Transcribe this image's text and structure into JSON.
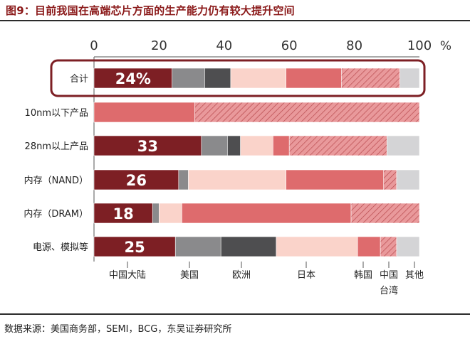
{
  "title": "图9：目前我国在高端芯片方面的生产能力仍有较大提升空间",
  "source": "数据来源：美国商务部，SEMI，BCG，东吴证券研究所",
  "chart_data": {
    "type": "bar",
    "orientation": "horizontal",
    "stacked": true,
    "xlim": [
      0,
      100
    ],
    "x_ticks": [
      "0",
      "20",
      "40",
      "60",
      "80",
      "100"
    ],
    "x_unit_label": "%",
    "categories": [
      "合计",
      "10nm以下产品",
      "28nm以上产品",
      "内存（NAND）",
      "内存（DRAM）",
      "电源、模拟等"
    ],
    "highlight_category": "合计",
    "series": [
      {
        "name": "中国大陆",
        "color": "#7d1f24",
        "pattern": "solid",
        "values": [
          24,
          0,
          33,
          26,
          18,
          25
        ]
      },
      {
        "name": "美国",
        "color": "#8a8a8c",
        "pattern": "solid",
        "values": [
          10,
          0,
          8,
          3,
          2,
          14
        ]
      },
      {
        "name": "欧洲",
        "color": "#4e4e50",
        "pattern": "solid",
        "values": [
          8,
          0,
          4,
          0,
          0,
          17
        ]
      },
      {
        "name": "日本",
        "color": "#fad3ca",
        "pattern": "solid",
        "values": [
          17,
          0,
          10,
          30,
          7,
          25
        ]
      },
      {
        "name": "韩国",
        "color": "#de6b6d",
        "pattern": "solid",
        "values": [
          17,
          31,
          5,
          30,
          52,
          7
        ]
      },
      {
        "name": "中国台湾",
        "color": "#e9999b",
        "pattern": "hatched",
        "values": [
          18,
          69,
          30,
          4,
          21,
          5
        ]
      },
      {
        "name": "其他",
        "color": "#d4d4d6",
        "pattern": "solid",
        "values": [
          6,
          0,
          10,
          7,
          0,
          7
        ]
      }
    ],
    "data_labels": [
      "24%",
      "",
      "33",
      "26",
      "18",
      "25"
    ],
    "legend_position": "bottom",
    "legend_labels": [
      "中国大陆",
      "美国",
      "欧洲",
      "日本",
      "韩国",
      "中国台湾",
      "其他"
    ],
    "grid": false
  }
}
